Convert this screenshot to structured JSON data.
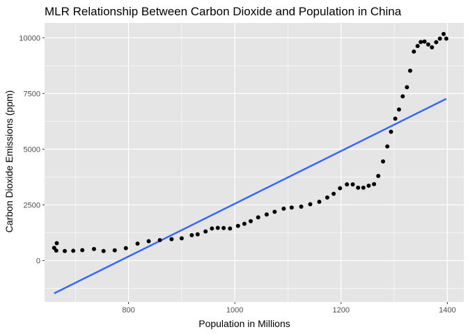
{
  "chart_data": {
    "type": "scatter",
    "title": "MLR Relationship Between Carbon Dioxide and Population in China",
    "xlabel": "Population in Millions",
    "ylabel": "Carbon Dioxide Emissions (ppm)",
    "xlim": [
      642,
      1431
    ],
    "ylim": [
      -1857,
      10664
    ],
    "x_ticks": [
      800,
      1000,
      1200,
      1400
    ],
    "x_tick_labels": [
      "800",
      "1000",
      "1200",
      "1400"
    ],
    "y_ticks": [
      0,
      2500,
      5000,
      7500,
      10000
    ],
    "y_tick_labels": [
      "0",
      "2500",
      "5000",
      "7500",
      "10000"
    ],
    "grid": true,
    "panel_background": "#e5e5e5",
    "grid_color": "#ffffff",
    "point_color": "#000000",
    "line_color": "#3366ff",
    "points": {
      "x": [
        660,
        664,
        665,
        680,
        696,
        713,
        735,
        753,
        774,
        795,
        817,
        838,
        859,
        881,
        900,
        919,
        930,
        945,
        957,
        968,
        979,
        991,
        1006,
        1018,
        1030,
        1044,
        1060,
        1075,
        1092,
        1107,
        1125,
        1142,
        1159,
        1174,
        1186,
        1198,
        1211,
        1222,
        1232,
        1242,
        1252,
        1262,
        1270,
        1279,
        1287,
        1294,
        1302,
        1309,
        1316,
        1324,
        1330,
        1337,
        1344,
        1350,
        1357,
        1364,
        1371,
        1379,
        1386,
        1393,
        1398
      ],
      "y": [
        570,
        450,
        780,
        430,
        440,
        470,
        520,
        430,
        460,
        560,
        760,
        870,
        920,
        960,
        1000,
        1140,
        1180,
        1310,
        1440,
        1470,
        1460,
        1440,
        1560,
        1650,
        1770,
        1940,
        2070,
        2190,
        2330,
        2380,
        2420,
        2530,
        2640,
        2830,
        3000,
        3250,
        3420,
        3420,
        3270,
        3270,
        3360,
        3430,
        3800,
        4450,
        5120,
        5780,
        6370,
        6780,
        7370,
        7780,
        8520,
        9380,
        9630,
        9810,
        9830,
        9700,
        9570,
        9800,
        9960,
        10170,
        9960
      ]
    },
    "fit_line": {
      "x": [
        660,
        1398
      ],
      "y": [
        -1470,
        7260
      ]
    }
  }
}
